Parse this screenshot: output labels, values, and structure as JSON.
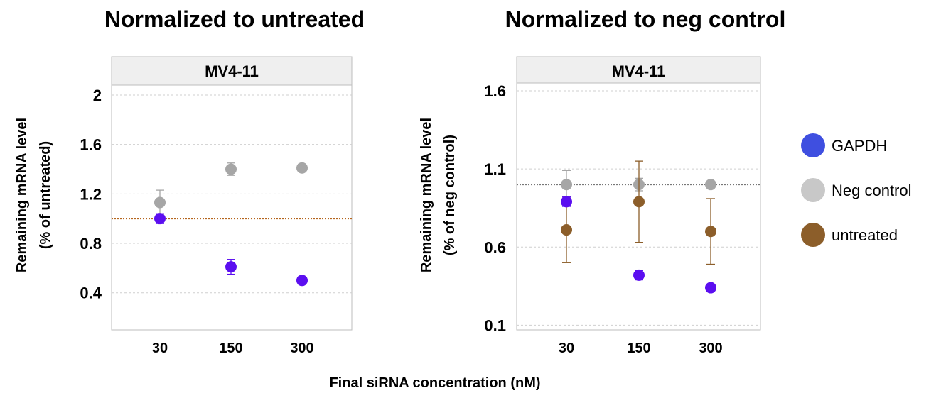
{
  "chart_data": [
    {
      "type": "scatter",
      "title": "Normalized to untreated",
      "facet": "MV4-11",
      "ylabel_lines": [
        "Remaining mRNA level",
        "(% of untreated)"
      ],
      "categories": [
        "30",
        "150",
        "300"
      ],
      "ylim": [
        0.1,
        2.08
      ],
      "yticks": [
        0.4,
        0.8,
        1.2,
        1.6,
        2
      ],
      "ytick_labels": [
        "0.4",
        "0.8",
        "1.2",
        "1.6",
        "2"
      ],
      "grid": true,
      "reference_line": {
        "y": 1.0,
        "color": "#b5651d"
      },
      "series": [
        {
          "name": "Neg control",
          "color": "#a6a6a6",
          "values": [
            1.13,
            1.4,
            1.41
          ],
          "err": [
            0.1,
            0.05,
            0.03
          ]
        },
        {
          "name": "GAPDH",
          "color": "#5b0ef0",
          "values": [
            1.0,
            0.61,
            0.5
          ],
          "err": [
            0.04,
            0.06,
            0.03
          ]
        }
      ]
    },
    {
      "type": "scatter",
      "title": "Normalized to neg control",
      "facet": "MV4-11",
      "ylabel_lines": [
        "Remaining mRNA level",
        "(% of neg control)"
      ],
      "categories": [
        "30",
        "150",
        "300"
      ],
      "ylim": [
        0.07,
        1.65
      ],
      "yticks": [
        0.1,
        0.6,
        1.1,
        1.6
      ],
      "ytick_labels": [
        "0.1",
        "0.6",
        "1.1",
        "1.6"
      ],
      "grid": true,
      "reference_line": {
        "y": 1.0,
        "color": "#777777"
      },
      "series": [
        {
          "name": "Neg control",
          "color": "#a6a6a6",
          "values": [
            1.0,
            1.0,
            1.0
          ],
          "err": [
            0.09,
            0.04,
            0.02
          ]
        },
        {
          "name": "untreated",
          "color": "#8c5e2a",
          "values": [
            0.71,
            0.89,
            0.7
          ],
          "err": [
            0.21,
            0.26,
            0.21
          ]
        },
        {
          "name": "GAPDH",
          "color": "#5b0ef0",
          "values": [
            0.89,
            0.42,
            0.34
          ],
          "err": [
            0.03,
            0.03,
            0.02
          ]
        }
      ]
    }
  ],
  "shared_xlabel": "Final siRNA concentration (nM)",
  "legend": {
    "position": "right",
    "items": [
      {
        "label": "GAPDH",
        "color": "#3f4fe0"
      },
      {
        "label": "Neg control",
        "color": "#c8c8c8"
      },
      {
        "label": "untreated",
        "color": "#8c5e2a"
      }
    ]
  }
}
